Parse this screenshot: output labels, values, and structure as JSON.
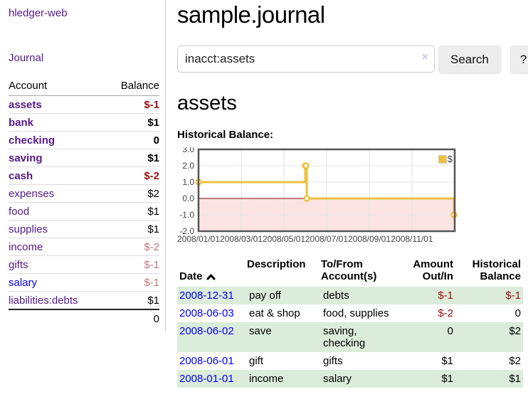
{
  "app": {
    "title": "hledger-web"
  },
  "sidebar": {
    "nav_journal": "Journal",
    "accounts_table": {
      "header_account": "Account",
      "header_balance": "Balance",
      "rows": [
        {
          "name": "assets",
          "balance": "$-1"
        },
        {
          "name": "bank",
          "balance": "$1"
        },
        {
          "name": "checking",
          "balance": "0"
        },
        {
          "name": "saving",
          "balance": "$1"
        },
        {
          "name": "cash",
          "balance": "$-2"
        },
        {
          "name": "expenses",
          "balance": "$2"
        },
        {
          "name": "food",
          "balance": "$1"
        },
        {
          "name": "supplies",
          "balance": "$1"
        },
        {
          "name": "income",
          "balance": "$-2"
        },
        {
          "name": "gifts",
          "balance": "$-1"
        },
        {
          "name": "salary",
          "balance": "$-1"
        },
        {
          "name": "liabilities:debts",
          "balance": "$1"
        }
      ],
      "total": "0"
    }
  },
  "main": {
    "title": "sample.journal",
    "search": {
      "value": "inacct:assets",
      "clear_icon": "×",
      "button_label": "Search",
      "help_label": "?"
    },
    "account_heading": "assets",
    "chart_heading": "Historical Balance:",
    "register_table": {
      "headers": {
        "date": "Date",
        "description": "Description",
        "to_from": "To/From\nAccount(s)",
        "amount": "Amount\nOut/In",
        "balance": "Historical\nBalance"
      },
      "rows": [
        {
          "date": "2008-12-31",
          "description": "pay off",
          "to_from": "debts",
          "amount": "$-1",
          "balance": "$-1"
        },
        {
          "date": "2008-06-03",
          "description": "eat & shop",
          "to_from": "food, supplies",
          "amount": "$-2",
          "balance": "0"
        },
        {
          "date": "2008-06-02",
          "description": "save",
          "to_from": "saving,\nchecking",
          "amount": "0",
          "balance": "$2"
        },
        {
          "date": "2008-06-01",
          "description": "gift",
          "to_from": "gifts",
          "amount": "$1",
          "balance": "$2"
        },
        {
          "date": "2008-01-01",
          "description": "income",
          "to_from": "salary",
          "amount": "$1",
          "balance": "$1"
        }
      ]
    }
  },
  "chart_data": {
    "type": "line",
    "title": "Historical Balance:",
    "step": true,
    "xlim": [
      0,
      12
    ],
    "ylim": [
      -2,
      3
    ],
    "y_ticks": [
      3.0,
      2.0,
      1.0,
      0.0,
      -1.0,
      -2.0
    ],
    "y_gridlines": [
      2,
      1,
      0,
      -1
    ],
    "x_ticks": [
      {
        "x": 0,
        "label": "2008/01/01"
      },
      {
        "x": 2,
        "label": "2008/03/01"
      },
      {
        "x": 4,
        "label": "2008/05/01"
      },
      {
        "x": 6,
        "label": "2008/07/01"
      },
      {
        "x": 8,
        "label": "2008/09/01"
      },
      {
        "x": 10,
        "label": "2008/11/01"
      }
    ],
    "legend": {
      "label": "$",
      "position": "ne"
    },
    "grid": true,
    "series": [
      {
        "name": "$",
        "color": "#edc240",
        "points": [
          {
            "date": "2008-01-01",
            "x": 0,
            "y": 1
          },
          {
            "date": "2008-06-01",
            "x": 5.0,
            "y": 2
          },
          {
            "date": "2008-06-02",
            "x": 5.03,
            "y": 2
          },
          {
            "date": "2008-06-03",
            "x": 5.07,
            "y": 0
          },
          {
            "date": "2008-12-31",
            "x": 11.97,
            "y": -1
          }
        ]
      }
    ],
    "colors": {
      "negative_fill": "#fbe3e3",
      "zero_line": "#800000",
      "grid": "#e3e3e3",
      "border": "#545454",
      "tick_label": "#444444"
    }
  }
}
